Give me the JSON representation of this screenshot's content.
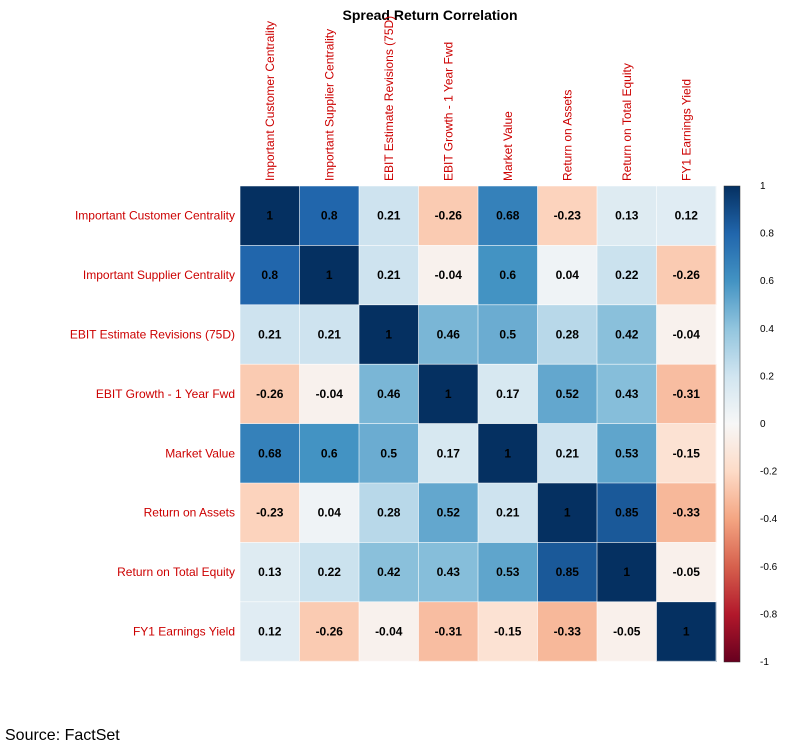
{
  "chart_data": {
    "type": "heatmap",
    "title": "Spread Return Correlation",
    "labels": [
      "Important Customer Centrality",
      "Important Supplier Centrality",
      "EBIT Estimate Revisions (75D)",
      "EBIT Growth - 1 Year Fwd",
      "Market Value",
      "Return on Assets",
      "Return on Total Equity",
      "FY1 Earnings Yield"
    ],
    "matrix": [
      [
        1,
        0.8,
        0.21,
        -0.26,
        0.68,
        -0.23,
        0.13,
        0.12
      ],
      [
        0.8,
        1,
        0.21,
        -0.04,
        0.6,
        0.04,
        0.22,
        -0.26
      ],
      [
        0.21,
        0.21,
        1,
        0.46,
        0.5,
        0.28,
        0.42,
        -0.04
      ],
      [
        -0.26,
        -0.04,
        0.46,
        1,
        0.17,
        0.52,
        0.43,
        -0.31
      ],
      [
        0.68,
        0.6,
        0.5,
        0.17,
        1,
        0.21,
        0.53,
        -0.15
      ],
      [
        -0.23,
        0.04,
        0.28,
        0.52,
        0.21,
        1,
        0.85,
        -0.33
      ],
      [
        0.13,
        0.22,
        0.42,
        0.43,
        0.53,
        0.85,
        1,
        -0.05
      ],
      [
        0.12,
        -0.26,
        -0.04,
        -0.31,
        -0.15,
        -0.33,
        -0.05,
        1
      ]
    ],
    "colorbar": {
      "range": [
        -1,
        1
      ],
      "ticks": [
        1,
        0.8,
        0.6,
        0.4,
        0.2,
        0,
        -0.2,
        -0.4,
        -0.6,
        -0.8,
        -1
      ],
      "colors": {
        "negative_end": "#67001f",
        "neutral": "#f7f7f7",
        "positive_end": "#053061"
      }
    },
    "label_color": "#cc0000"
  },
  "source": "Source: FactSet"
}
